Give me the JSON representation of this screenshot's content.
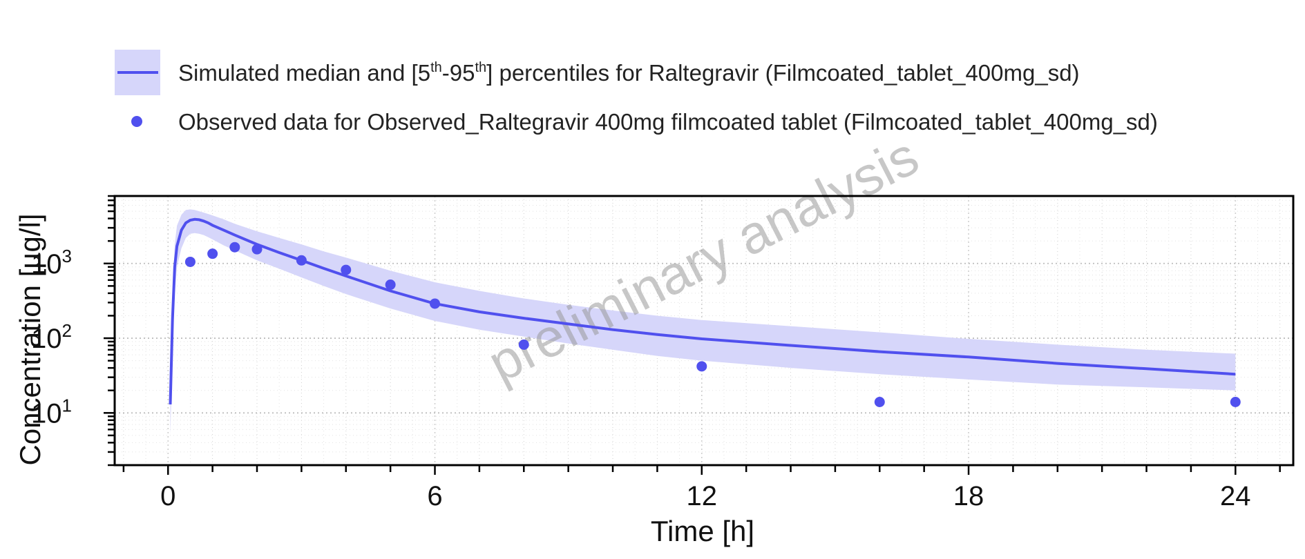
{
  "legend": {
    "simulated_prefix": "Simulated median and [5",
    "sup1": "th",
    "mid": "-95",
    "sup2": "th",
    "simulated_suffix": "] percentiles for Raltegravir (Filmcoated_tablet_400mg_sd)",
    "observed": "Observed data for Observed_Raltegravir 400mg filmcoated tablet (Filmcoated_tablet_400mg_sd)"
  },
  "watermark": "preliminary analysis",
  "colors": {
    "series": "#5050EE",
    "band": "#D6D6FA",
    "grid": "#C8C8C8",
    "axis": "#000000"
  },
  "chart_data": {
    "type": "line",
    "xlabel": "Time [h]",
    "ylabel": "Concentration [µg/l]",
    "xlim": [
      -1.2,
      25.3
    ],
    "ylim": [
      2,
      8000
    ],
    "y_scale": "log",
    "grid": true,
    "legend_position": "top",
    "x_ticks": [
      0,
      6,
      12,
      18,
      24
    ],
    "y_ticks": [
      {
        "value": 10,
        "base": "10",
        "exp": "1"
      },
      {
        "value": 100,
        "base": "10",
        "exp": "2"
      },
      {
        "value": 1000,
        "base": "10",
        "exp": "3"
      }
    ],
    "series": [
      {
        "kind": "median_with_band",
        "x": [
          0.05,
          0.1,
          0.15,
          0.2,
          0.3,
          0.4,
          0.5,
          0.6,
          0.7,
          0.8,
          0.9,
          1.0,
          1.25,
          1.5,
          2.0,
          2.5,
          3.0,
          3.5,
          4.0,
          5.0,
          6.0,
          7.0,
          8.0,
          9.0,
          10.0,
          11.0,
          12.0,
          14.0,
          16.0,
          18.0,
          20.0,
          22.0,
          24.0
        ],
        "median": [
          13,
          180,
          900,
          1700,
          2800,
          3500,
          3800,
          3900,
          3850,
          3700,
          3500,
          3250,
          2800,
          2400,
          1800,
          1400,
          1100,
          860,
          680,
          430,
          290,
          225,
          185,
          155,
          130,
          112,
          98,
          80,
          66,
          56,
          46,
          39,
          33
        ],
        "p5": [
          5,
          60,
          400,
          900,
          1600,
          2200,
          2500,
          2550,
          2500,
          2400,
          2250,
          2100,
          1750,
          1500,
          1100,
          850,
          650,
          500,
          390,
          250,
          170,
          130,
          105,
          85,
          70,
          58,
          50,
          40,
          33,
          28,
          24,
          22,
          20
        ],
        "p95": [
          30,
          350,
          1800,
          3200,
          4500,
          5200,
          5300,
          5200,
          5000,
          4800,
          4600,
          4400,
          3900,
          3400,
          2700,
          2200,
          1800,
          1450,
          1200,
          800,
          560,
          430,
          340,
          280,
          235,
          200,
          175,
          145,
          120,
          98,
          82,
          70,
          62
        ]
      },
      {
        "kind": "observed",
        "x": [
          0.5,
          1.0,
          1.5,
          2.0,
          3.0,
          4.0,
          5.0,
          6.0,
          8.0,
          12.0,
          16.0,
          24.0
        ],
        "y": [
          1050,
          1350,
          1650,
          1550,
          1100,
          820,
          520,
          290,
          82,
          42,
          14,
          14
        ]
      }
    ]
  }
}
